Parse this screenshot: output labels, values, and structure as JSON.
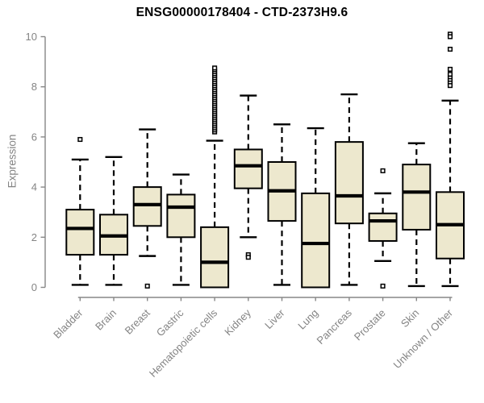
{
  "chart_data": {
    "type": "boxplot",
    "title": "ENSG00000178404 - CTD-2373H9.6",
    "ylabel": "Expression",
    "xlabel": "",
    "ylim": [
      0,
      10
    ],
    "yticks": [
      0,
      2,
      4,
      6,
      8,
      10
    ],
    "grid": false,
    "legend": false,
    "colors": {
      "box_fill": "#EDE8CE",
      "box_stroke": "#000000",
      "axis": "#878787",
      "label_text": "#848484",
      "title_text": "#000000"
    },
    "outlier_marker": "open-square",
    "categories": [
      "Bladder",
      "Brain",
      "Breast",
      "Gastric",
      "Hematopoietic cells",
      "Kidney",
      "Liver",
      "Lung",
      "Pancreas",
      "Prostate",
      "Skin",
      "Unknown / Other"
    ],
    "boxes": [
      {
        "category": "Bladder",
        "whisker_low": 0.1,
        "q1": 1.3,
        "median": 2.35,
        "q3": 3.1,
        "whisker_high": 5.1,
        "outliers": [
          5.9
        ]
      },
      {
        "category": "Brain",
        "whisker_low": 0.1,
        "q1": 1.3,
        "median": 2.05,
        "q3": 2.9,
        "whisker_high": 5.2,
        "outliers": []
      },
      {
        "category": "Breast",
        "whisker_low": 1.25,
        "q1": 2.45,
        "median": 3.3,
        "q3": 4.0,
        "whisker_high": 6.3,
        "outliers": [
          0.05
        ]
      },
      {
        "category": "Gastric",
        "whisker_low": 0.1,
        "q1": 2.0,
        "median": 3.2,
        "q3": 3.7,
        "whisker_high": 4.5,
        "outliers": []
      },
      {
        "category": "Hematopoietic cells",
        "whisker_low": 0.0,
        "q1": 0.0,
        "median": 1.0,
        "q3": 2.4,
        "whisker_high": 5.85,
        "outliers": [
          6.2,
          6.28,
          6.36,
          6.44,
          6.52,
          6.6,
          6.68,
          6.76,
          6.84,
          6.92,
          7.0,
          7.08,
          7.16,
          7.24,
          7.32,
          7.4,
          7.48,
          7.56,
          7.64,
          7.72,
          7.8,
          7.88,
          7.96,
          8.04,
          8.12,
          8.2,
          8.28,
          8.36,
          8.44,
          8.52,
          8.6,
          8.68,
          8.75
        ]
      },
      {
        "category": "Kidney",
        "whisker_low": 2.0,
        "q1": 3.95,
        "median": 4.85,
        "q3": 5.5,
        "whisker_high": 7.65,
        "outliers": [
          1.3,
          1.2
        ]
      },
      {
        "category": "Liver",
        "whisker_low": 0.1,
        "q1": 2.65,
        "median": 3.85,
        "q3": 5.0,
        "whisker_high": 6.5,
        "outliers": []
      },
      {
        "category": "Lung",
        "whisker_low": 0.0,
        "q1": 0.0,
        "median": 1.75,
        "q3": 3.75,
        "whisker_high": 6.35,
        "outliers": []
      },
      {
        "category": "Pancreas",
        "whisker_low": 0.1,
        "q1": 2.55,
        "median": 3.65,
        "q3": 5.8,
        "whisker_high": 7.7,
        "outliers": []
      },
      {
        "category": "Prostate",
        "whisker_low": 1.05,
        "q1": 1.85,
        "median": 2.65,
        "q3": 2.95,
        "whisker_high": 3.75,
        "outliers": [
          4.65,
          0.05
        ]
      },
      {
        "category": "Skin",
        "whisker_low": 0.05,
        "q1": 2.3,
        "median": 3.8,
        "q3": 4.9,
        "whisker_high": 5.75,
        "outliers": []
      },
      {
        "category": "Unknown / Other",
        "whisker_low": 0.05,
        "q1": 1.15,
        "median": 2.5,
        "q3": 3.8,
        "whisker_high": 7.45,
        "outliers": [
          10.1,
          10.0,
          9.5,
          8.7,
          8.5,
          8.35,
          8.25,
          8.15,
          8.05
        ]
      }
    ]
  }
}
